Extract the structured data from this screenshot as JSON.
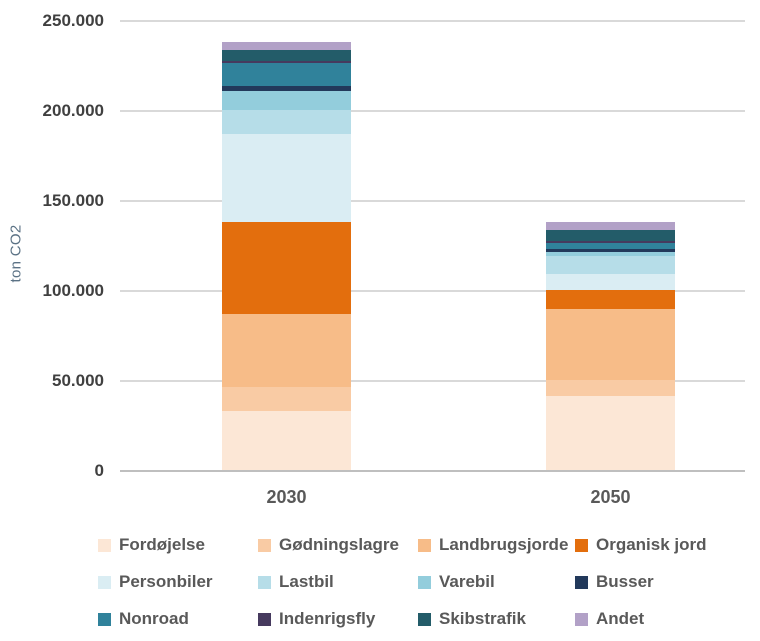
{
  "chart_data": {
    "type": "bar",
    "stacked": true,
    "title": "",
    "xlabel": "",
    "ylabel": "ton CO2",
    "categories": [
      "2030",
      "2050"
    ],
    "ylim": [
      0,
      250000
    ],
    "ytick_values": [
      0,
      50000,
      100000,
      150000,
      200000,
      250000
    ],
    "ytick_labels": [
      "0",
      "50.000",
      "100.000",
      "150.000",
      "200.000",
      "250.000"
    ],
    "grid": "horizontal",
    "legend_position": "bottom",
    "series": [
      {
        "name": "Fordøjelse",
        "color": "#FCE7D6",
        "values": [
          33000,
          41000
        ]
      },
      {
        "name": "Gødningslagre",
        "color": "#F9CBA4",
        "values": [
          13000,
          9000
        ]
      },
      {
        "name": "Landbrugsjorde",
        "color": "#F7BC88",
        "values": [
          40500,
          39500
        ]
      },
      {
        "name": "Organisk jord",
        "color": "#E36E0D",
        "values": [
          51500,
          10700
        ]
      },
      {
        "name": "Personbiler",
        "color": "#DAEDF3",
        "values": [
          48500,
          8700
        ]
      },
      {
        "name": "Lastbil",
        "color": "#B6DDE8",
        "values": [
          13700,
          9800
        ]
      },
      {
        "name": "Varebil",
        "color": "#93CDDC",
        "values": [
          10400,
          2600
        ]
      },
      {
        "name": "Busser",
        "color": "#22395B",
        "values": [
          2600,
          1500
        ]
      },
      {
        "name": "Nonroad",
        "color": "#30829B",
        "values": [
          12800,
          3200
        ]
      },
      {
        "name": "Indenrigsfly",
        "color": "#463A5E",
        "values": [
          1300,
          1100
        ]
      },
      {
        "name": "Skibstrafik",
        "color": "#235C69",
        "values": [
          6300,
          6300
        ]
      },
      {
        "name": "Andet",
        "color": "#B2A1C7",
        "values": [
          4300,
          4300
        ]
      }
    ]
  },
  "colors": {
    "background": "#FFFFFF",
    "gridline": "#D9D9D9",
    "axis_line": "#BFBFBF",
    "tick_label": "#404040",
    "category_label": "#595959",
    "legend_label": "#595959",
    "axis_title": "#5B7285"
  }
}
